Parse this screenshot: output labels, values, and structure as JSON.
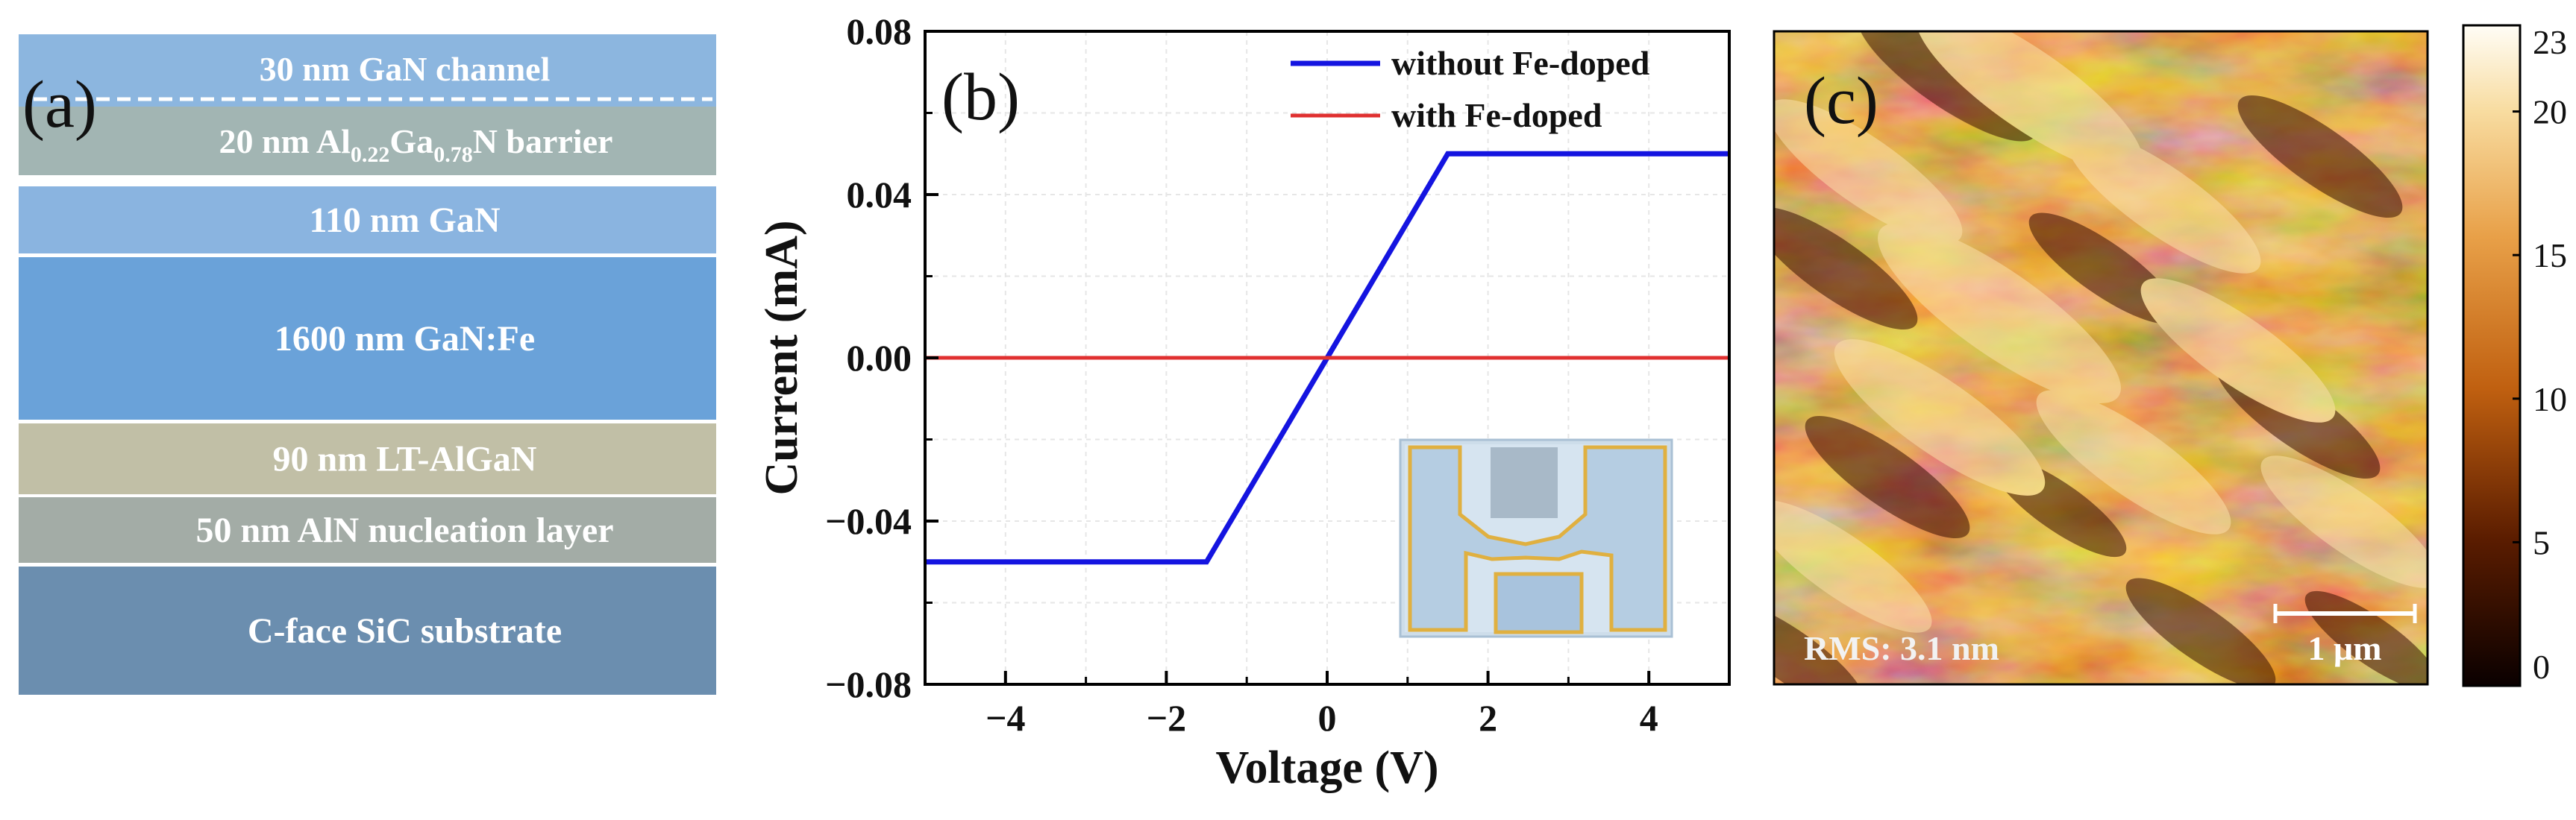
{
  "panel_a": {
    "letter": "(a)",
    "layers": [
      {
        "label": "30 nm  GaN channel",
        "color": "#8CB6DF"
      },
      {
        "label": "20 nm Al0.22Ga0.78N barrier",
        "prefix": "20 nm Al",
        "sub1": "0.22",
        "mid": "Ga",
        "sub2": "0.78",
        "suffix": "N barrier",
        "color": "#A2B5B3"
      },
      {
        "label": "110 nm GaN",
        "color": "#8AB4E0"
      },
      {
        "label": "1600 nm GaN:Fe",
        "color": "#6AA2D9"
      },
      {
        "label": "90 nm LT-AlGaN",
        "color": "#C1BFA6"
      },
      {
        "label": "50 nm AlN nucleation layer",
        "color": "#A3ACA6"
      },
      {
        "label": "C-face SiC substrate",
        "color": "#6B8EAF"
      }
    ]
  },
  "panel_b": {
    "letter": "(b)",
    "chart_data": {
      "type": "line",
      "xlabel": "Voltage (V)",
      "ylabel": "Current (mA)",
      "xlim": [
        -5,
        5
      ],
      "ylim": [
        -0.08,
        0.08
      ],
      "xticks": [
        -4,
        -2,
        0,
        2,
        4
      ],
      "xtick_labels": [
        "−4",
        "−2",
        "0",
        "2",
        "4"
      ],
      "yticks": [
        -0.08,
        -0.04,
        0.0,
        0.04,
        0.08
      ],
      "ytick_labels": [
        "−0.08",
        "−0.04",
        "0.00",
        "0.04",
        "0.08"
      ],
      "grid": true,
      "legend_position": "top-right",
      "series": [
        {
          "name": "without Fe-doped",
          "color": "#1414E0",
          "x": [
            -5,
            -1.5,
            1.5,
            5
          ],
          "y": [
            -0.05,
            -0.05,
            0.05,
            0.05
          ]
        },
        {
          "name": "with Fe-doped",
          "color": "#E03030",
          "x": [
            -5,
            5
          ],
          "y": [
            0.0,
            0.0
          ]
        }
      ]
    }
  },
  "panel_c": {
    "letter": "(c)",
    "rms_label": "RMS: 3.1 nm",
    "scale_bar_label": "1 μm",
    "colorbar": {
      "ticks": [
        "23",
        "20",
        "15",
        "10",
        "5",
        "0"
      ],
      "tick_values": [
        23,
        20,
        15,
        10,
        5,
        0
      ],
      "range": [
        0,
        23
      ]
    }
  }
}
